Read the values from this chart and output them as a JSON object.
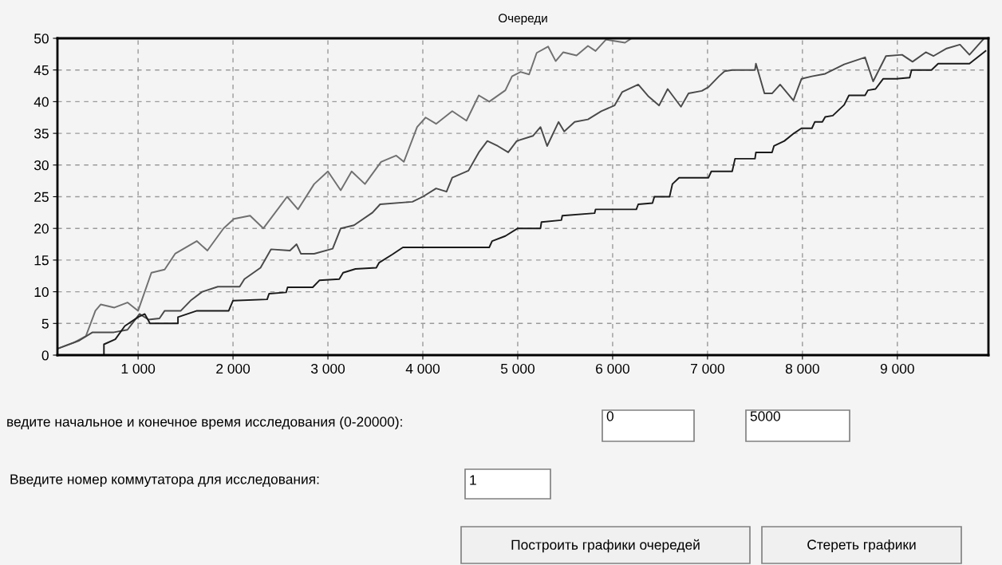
{
  "chart_data": {
    "type": "line",
    "title": "Очереди",
    "series": [
      {
        "color": "#707070",
        "x": [
          150,
          327,
          450,
          550,
          607,
          750,
          888,
          1000,
          1140,
          1280,
          1390,
          1618,
          1730,
          1900,
          2010,
          2180,
          2320,
          2570,
          2685,
          2855,
          3000,
          3135,
          3250,
          3390,
          3560,
          3720,
          3800,
          3940,
          4030,
          4140,
          4310,
          4460,
          4590,
          4700,
          4870,
          4940,
          5030,
          5120,
          5200,
          5320,
          5400,
          5480,
          5620,
          5740,
          5820,
          5930,
          6130,
          6200
        ],
        "values": [
          1,
          2,
          3,
          7,
          8,
          7.5,
          8.3,
          7,
          13,
          13.5,
          16,
          18,
          16.5,
          20,
          21.5,
          22,
          20,
          25,
          23,
          27,
          29,
          26,
          29,
          27,
          30.5,
          31.5,
          30.5,
          36,
          37.5,
          36.5,
          38.5,
          37,
          41,
          40,
          41.8,
          44,
          44.7,
          44.3,
          47.7,
          48.7,
          46.4,
          47.8,
          47.3,
          48.8,
          48,
          49.8,
          49.3,
          50
        ]
      },
      {
        "color": "#4a4a4a",
        "x": [
          150,
          380,
          520,
          745,
          888,
          1015,
          1110,
          1225,
          1280,
          1450,
          1560,
          1675,
          1840,
          2070,
          2120,
          2290,
          2400,
          2600,
          2670,
          2715,
          2855,
          3050,
          3135,
          3275,
          3470,
          3550,
          3890,
          4000,
          4140,
          4250,
          4310,
          4480,
          4590,
          4680,
          4790,
          4900,
          4990,
          5160,
          5240,
          5310,
          5430,
          5490,
          5600,
          5740,
          5880,
          6020,
          6100,
          6270,
          6380,
          6490,
          6580,
          6720,
          6800,
          6940,
          7010,
          7120,
          7180,
          7260,
          7500,
          7510,
          7600,
          7680,
          7765,
          7905,
          7990,
          8100,
          8240,
          8440,
          8660,
          8745,
          8880,
          9050,
          9160,
          9300,
          9380,
          9520,
          9660,
          9760,
          9915
        ],
        "values": [
          1,
          2.3,
          3.6,
          3.6,
          4,
          6.5,
          5.6,
          5.8,
          7,
          7,
          8.7,
          10,
          10.8,
          10.8,
          12,
          13.8,
          16.7,
          16.5,
          17.5,
          16,
          16,
          16.8,
          20,
          20.5,
          22.5,
          23.8,
          24.2,
          25,
          26.3,
          25.8,
          28,
          29.1,
          32,
          33.8,
          33,
          32,
          33.8,
          34.6,
          36,
          33,
          36.8,
          35.3,
          36.8,
          37.2,
          38.5,
          39.4,
          41.5,
          42.7,
          40.8,
          39.4,
          42,
          39.2,
          41.3,
          41.7,
          42.3,
          44,
          44.8,
          45,
          45,
          46,
          41.3,
          41.3,
          42.7,
          40.2,
          43.6,
          44,
          44.4,
          45.9,
          47,
          43.2,
          47.2,
          47.4,
          46.3,
          47.8,
          47.2,
          48.4,
          49,
          47.4,
          50
        ]
      },
      {
        "color": "#1a1a1a",
        "x": [
          150,
          640,
          640,
          760,
          860,
          1000,
          1070,
          1125,
          1420,
          1420,
          1620,
          1955,
          2000,
          2360,
          2380,
          2560,
          2575,
          2840,
          2910,
          3120,
          3160,
          3290,
          3510,
          3540,
          3680,
          3790,
          4700,
          4730,
          4870,
          5000,
          5240,
          5250,
          5460,
          5470,
          5810,
          5820,
          6250,
          6270,
          6420,
          6440,
          6600,
          6630,
          6700,
          7010,
          7040,
          7260,
          7290,
          7500,
          7510,
          7680,
          7700,
          7810,
          7910,
          7990,
          8100,
          8130,
          8210,
          8240,
          8320,
          8440,
          8490,
          8660,
          8690,
          8770,
          8850,
          8990,
          9130,
          9150,
          9360,
          9430,
          9760,
          9930
        ],
        "values": [
          0,
          0,
          1.7,
          2.5,
          4.6,
          6,
          6.5,
          5,
          5,
          6,
          7,
          7,
          8.6,
          8.8,
          9.7,
          9.9,
          10.7,
          10.7,
          11.8,
          12,
          13,
          13.6,
          13.8,
          14.6,
          15.9,
          17,
          17,
          18,
          18.8,
          20,
          20,
          21,
          21.3,
          22,
          22.4,
          23,
          23,
          23.8,
          24,
          25,
          25,
          27,
          28,
          28,
          29,
          29,
          31,
          31,
          32,
          32,
          33,
          33.8,
          35,
          35.8,
          35.8,
          36.8,
          36.8,
          37.6,
          37.8,
          39.5,
          41,
          41,
          41.8,
          42,
          43.6,
          43.6,
          43.8,
          45,
          45,
          46,
          46,
          48
        ]
      }
    ],
    "xlim": [
      150,
      9960
    ],
    "ylim": [
      0,
      50
    ],
    "xticks": [
      {
        "value": 1000,
        "label": "1 000"
      },
      {
        "value": 2000,
        "label": "2 000"
      },
      {
        "value": 3000,
        "label": "3 000"
      },
      {
        "value": 4000,
        "label": "4 000"
      },
      {
        "value": 5000,
        "label": "5 000"
      },
      {
        "value": 6000,
        "label": "6 000"
      },
      {
        "value": 7000,
        "label": "7 000"
      },
      {
        "value": 8000,
        "label": "8 000"
      },
      {
        "value": 9000,
        "label": "9 000"
      }
    ],
    "yticks": [
      0,
      5,
      10,
      15,
      20,
      25,
      30,
      35,
      40,
      45,
      50
    ],
    "grid": true,
    "line_style": "solid",
    "marker": "none",
    "annotations": [
      "ведите начальное и конечное время исследования (0-20000):",
      "0",
      "5000",
      "Введите номер коммутатора для исследования:",
      "1",
      "Построить графики очередей",
      "Стереть графики"
    ]
  }
}
